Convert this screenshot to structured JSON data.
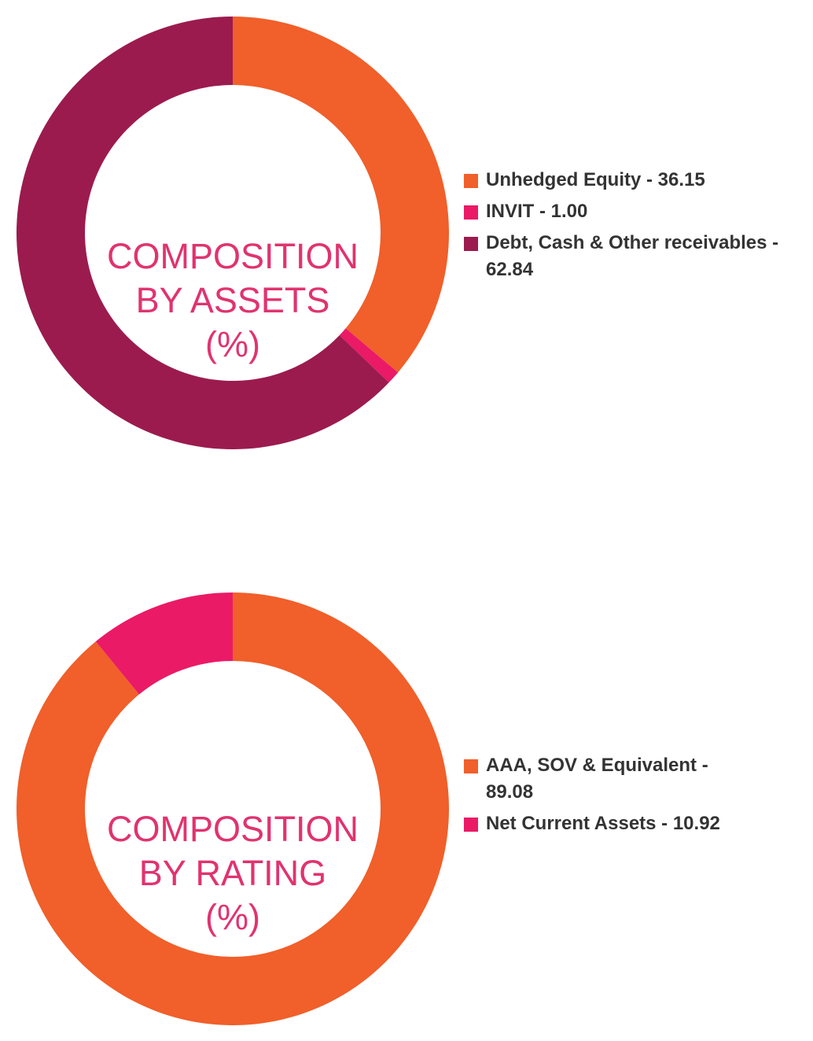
{
  "chart_data": [
    {
      "type": "pie",
      "donut": true,
      "center_title": [
        "COMPOSITION",
        "BY ASSETS",
        "(%)"
      ],
      "legend_position": "right",
      "slices": [
        {
          "label": "Unhedged Equity - 36.15",
          "value": 36.15,
          "color": "#f15f2a"
        },
        {
          "label": "INVIT - 1.00",
          "value": 1.0,
          "color": "#ea1a66"
        },
        {
          "label": "Debt, Cash & Other receivables - 62.84",
          "value": 62.84,
          "color": "#9b1b4e"
        }
      ]
    },
    {
      "type": "pie",
      "donut": true,
      "center_title": [
        "COMPOSITION",
        "BY RATING",
        "(%)"
      ],
      "legend_position": "right",
      "slices": [
        {
          "label": "AAA, SOV & Equivalent - 89.08",
          "value": 89.08,
          "color": "#f15f2a"
        },
        {
          "label": "Net Current Assets - 10.92",
          "value": 10.92,
          "color": "#ea1a66"
        }
      ]
    }
  ]
}
